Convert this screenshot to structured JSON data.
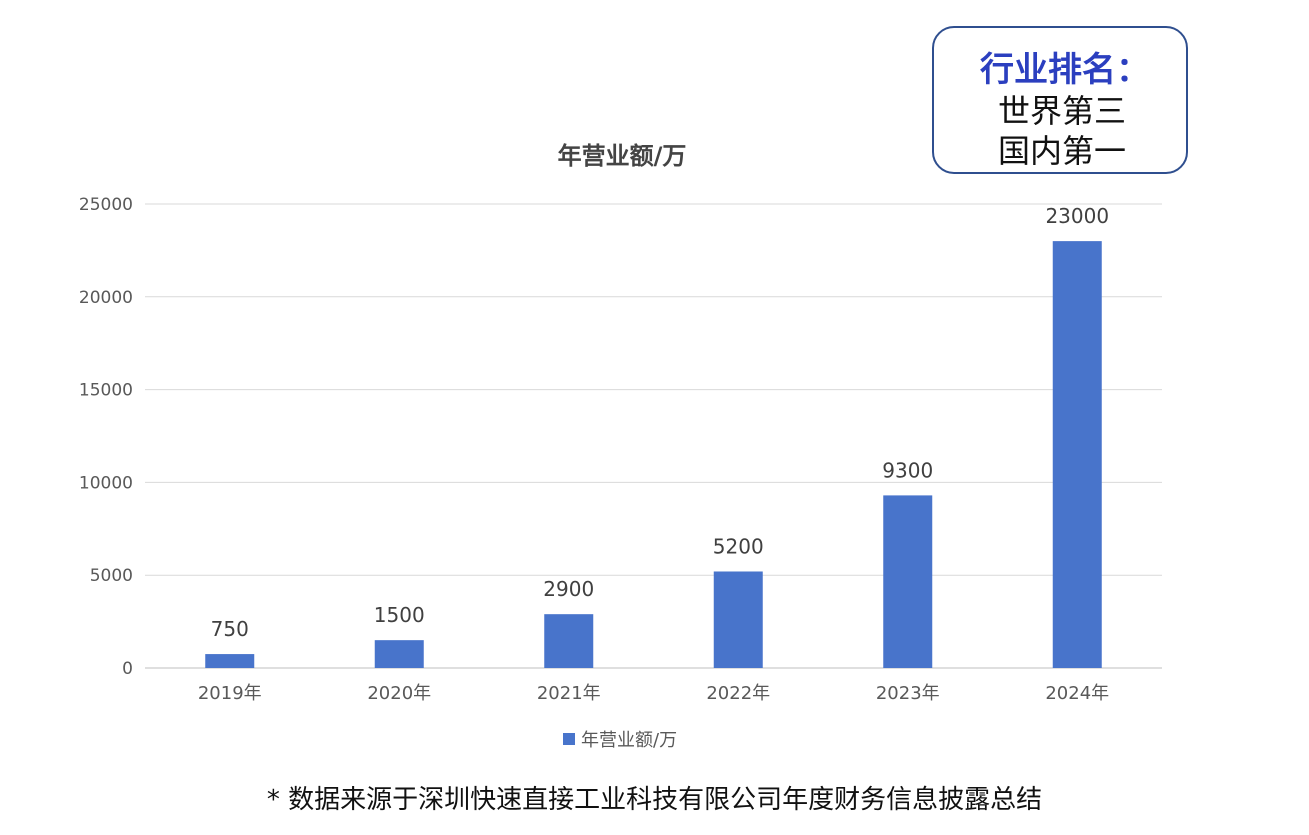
{
  "chart_data": {
    "type": "bar",
    "title": "年营业额/万",
    "categories": [
      "2019年",
      "2020年",
      "2021年",
      "2022年",
      "2023年",
      "2024年"
    ],
    "series": [
      {
        "name": "年营业额/万",
        "values": [
          750,
          1500,
          2900,
          5200,
          9300,
          23000
        ],
        "color": "#4874cb"
      }
    ],
    "data_labels": [
      "750",
      "1500",
      "2900",
      "5200",
      "9300",
      "23000"
    ],
    "ylim": [
      0,
      25000
    ],
    "yticks": [
      0,
      5000,
      10000,
      15000,
      20000,
      25000
    ],
    "ytick_labels": [
      "0",
      "5000",
      "10000",
      "15000",
      "20000",
      "25000"
    ],
    "grid": true,
    "legend_position": "bottom"
  },
  "ranking": {
    "title": "行业排名：",
    "line1": "世界第三",
    "line2": "国内第一"
  },
  "footnote": "* 数据来源于深圳快速直接工业科技有限公司年度财务信息披露总结",
  "colors": {
    "bar": "#4874cb",
    "ranking_title": "#2b3fbf",
    "ranking_border": "#2f4f8f",
    "grid": "#d9d9d9"
  }
}
